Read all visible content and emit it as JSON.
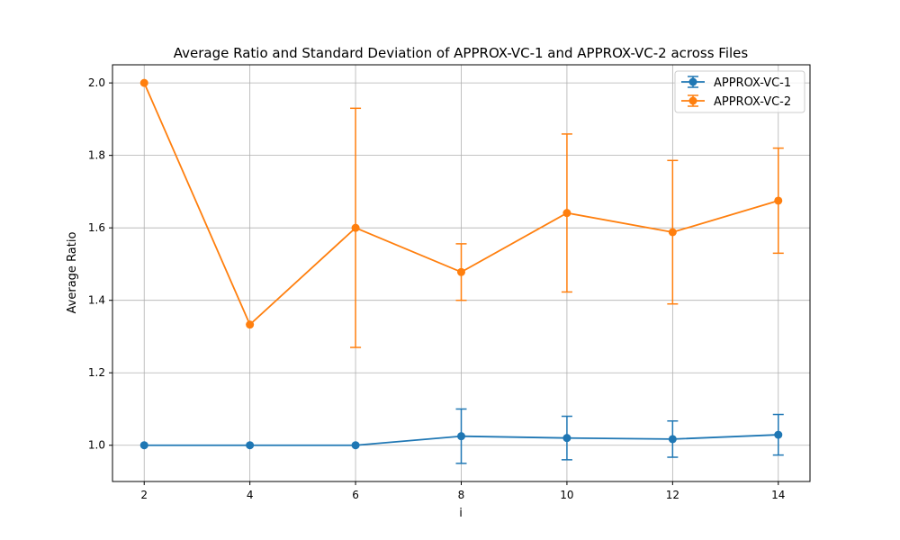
{
  "chart_data": {
    "type": "line",
    "title": "Average Ratio and Standard Deviation of APPROX-VC-1 and APPROX-VC-2 across Files",
    "xlabel": "i",
    "ylabel": "Average Ratio",
    "x": [
      2,
      4,
      6,
      8,
      10,
      12,
      14
    ],
    "xlim": [
      1.4,
      14.6
    ],
    "ylim": [
      0.9,
      2.05
    ],
    "xticks": [
      2,
      4,
      6,
      8,
      10,
      12,
      14
    ],
    "yticks": [
      1.0,
      1.2,
      1.4,
      1.6,
      1.8,
      2.0
    ],
    "ytick_labels": [
      "1.0",
      "1.2",
      "1.4",
      "1.6",
      "1.8",
      "2.0"
    ],
    "grid": true,
    "legend_position": "top-right",
    "series": [
      {
        "name": "APPROX-VC-1",
        "color": "#1f77b4",
        "values": [
          1.0,
          1.0,
          1.0,
          1.025,
          1.02,
          1.017,
          1.029
        ],
        "errors": [
          0.0,
          0.0,
          0.0,
          0.075,
          0.06,
          0.05,
          0.056
        ]
      },
      {
        "name": "APPROX-VC-2",
        "color": "#ff7f0e",
        "values": [
          2.0,
          1.333,
          1.6,
          1.478,
          1.641,
          1.588,
          1.675
        ],
        "errors": [
          0.0,
          0.0,
          0.33,
          0.078,
          0.218,
          0.198,
          0.145
        ]
      }
    ]
  }
}
